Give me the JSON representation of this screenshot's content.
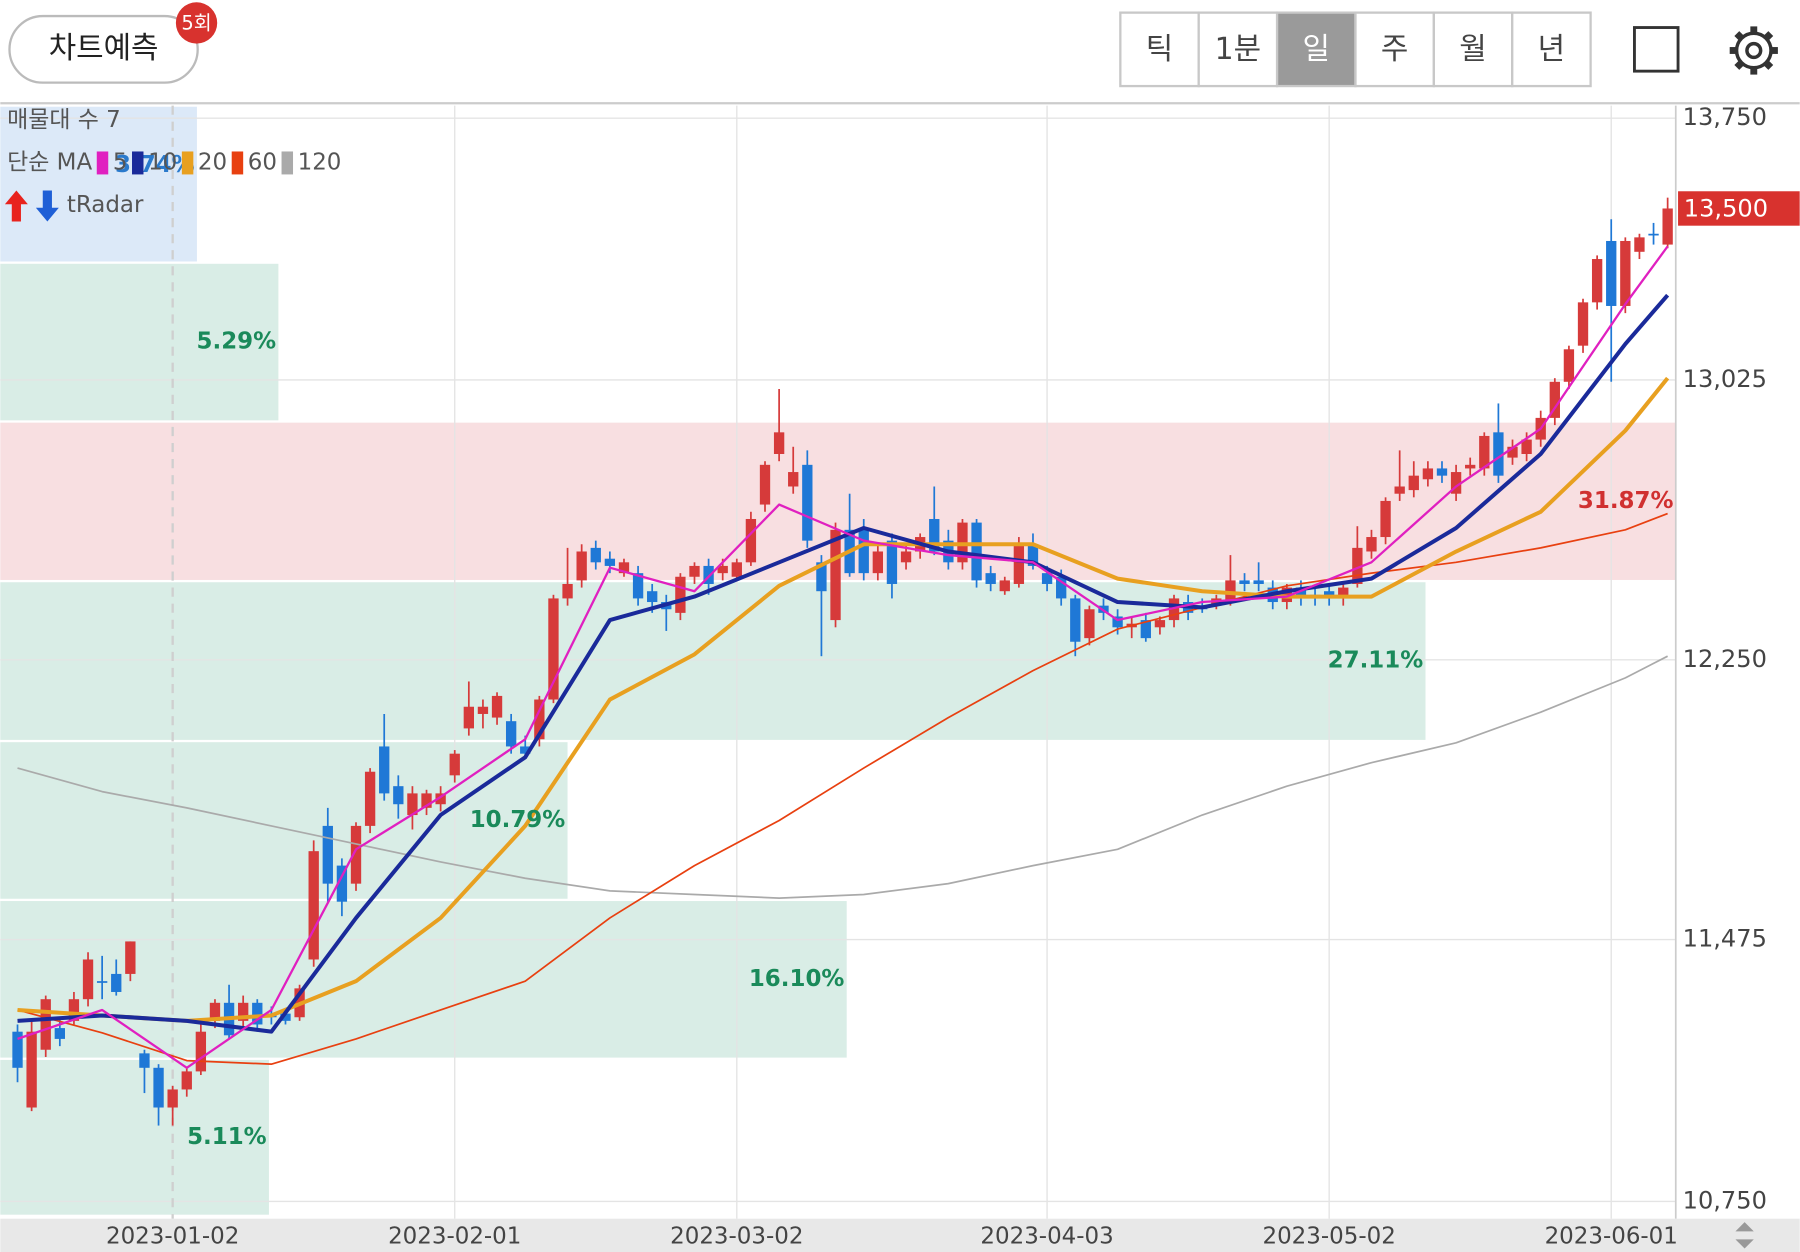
{
  "header": {
    "predict_button": "차트예측",
    "badge": "5회",
    "tabs": [
      "틱",
      "1분",
      "일",
      "주",
      "월",
      "년"
    ],
    "selected_tab": 2
  },
  "chart_data": {
    "type": "candlestick",
    "legend": {
      "volume_profile": "매물대 수 7",
      "ma_label": "단순 MA",
      "radar": "tRadar"
    },
    "up_color": "#d63a3a",
    "down_color": "#1f78d6",
    "ylim": [
      10702,
      13785
    ],
    "yticks": [
      {
        "value": 13750,
        "label": "13,750"
      },
      {
        "value": 13025,
        "label": "13,025"
      },
      {
        "value": 12250,
        "label": "12,250"
      },
      {
        "value": 11475,
        "label": "11,475"
      },
      {
        "value": 10750,
        "label": "10,750"
      }
    ],
    "xticks": [
      {
        "index": 11,
        "label": "2023-01-02"
      },
      {
        "index": 31,
        "label": "2023-02-01"
      },
      {
        "index": 51,
        "label": "2023-03-02"
      },
      {
        "index": 73,
        "label": "2023-04-03"
      },
      {
        "index": 93,
        "label": "2023-05-02"
      },
      {
        "index": 113,
        "label": "2023-06-01"
      }
    ],
    "separator_tick": 0,
    "grid": true,
    "current_price": {
      "value": 13500,
      "label": "13,500"
    },
    "band_colors": {
      "normal": [
        "#d9ede6",
        "#1a8a5a"
      ],
      "max": [
        "#f8dfe1",
        "#d03030"
      ],
      "current": [
        "#dce9f8",
        "#2a7acc"
      ]
    },
    "bands": [
      {
        "low": 10710,
        "high": 11145,
        "percent": 5.11,
        "label": "5.11%"
      },
      {
        "low": 11145,
        "high": 11585,
        "percent": 16.1,
        "label": "16.10%"
      },
      {
        "low": 11585,
        "high": 12025,
        "percent": 10.79,
        "label": "10.79%"
      },
      {
        "low": 12025,
        "high": 12468,
        "percent": 27.11,
        "label": "27.11%"
      },
      {
        "low": 12468,
        "high": 12910,
        "percent": 31.87,
        "label": "31.87%"
      },
      {
        "low": 12910,
        "high": 13350,
        "percent": 5.29,
        "label": "5.29%"
      },
      {
        "low": 13350,
        "high": 13790,
        "percent": 3.74,
        "label": "3.74%"
      }
    ],
    "candles": [
      [
        11220,
        11240,
        11080,
        11120
      ],
      [
        11010,
        11250,
        11000,
        11220
      ],
      [
        11170,
        11320,
        11150,
        11310
      ],
      [
        11230,
        11260,
        11180,
        11200
      ],
      [
        11250,
        11330,
        11240,
        11310
      ],
      [
        11310,
        11440,
        11290,
        11420
      ],
      [
        11360,
        11430,
        11310,
        11360
      ],
      [
        11380,
        11420,
        11320,
        11330
      ],
      [
        11380,
        11470,
        11360,
        11470
      ],
      [
        11160,
        11170,
        11050,
        11120
      ],
      [
        11120,
        11130,
        10960,
        11010
      ],
      [
        11010,
        11070,
        10960,
        11060
      ],
      [
        11060,
        11120,
        11040,
        11110
      ],
      [
        11110,
        11240,
        11100,
        11220
      ],
      [
        11250,
        11310,
        11230,
        11300
      ],
      [
        11300,
        11350,
        11200,
        11210
      ],
      [
        11250,
        11320,
        11230,
        11300
      ],
      [
        11300,
        11310,
        11220,
        11240
      ],
      [
        11270,
        11290,
        11240,
        11260
      ],
      [
        11270,
        11280,
        11240,
        11250
      ],
      [
        11260,
        11350,
        11250,
        11340
      ],
      [
        11420,
        11750,
        11400,
        11720
      ],
      [
        11790,
        11840,
        11580,
        11630
      ],
      [
        11680,
        11700,
        11540,
        11580
      ],
      [
        11630,
        11800,
        11610,
        11790
      ],
      [
        11790,
        11950,
        11770,
        11940
      ],
      [
        12010,
        12100,
        11860,
        11880
      ],
      [
        11900,
        11930,
        11810,
        11850
      ],
      [
        11820,
        11900,
        11780,
        11880
      ],
      [
        11840,
        11890,
        11820,
        11880
      ],
      [
        11850,
        11900,
        11830,
        11880
      ],
      [
        11930,
        12000,
        11910,
        11990
      ],
      [
        12060,
        12190,
        12040,
        12120
      ],
      [
        12100,
        12140,
        12060,
        12120
      ],
      [
        12090,
        12160,
        12070,
        12150
      ],
      [
        12080,
        12100,
        11990,
        12010
      ],
      [
        12010,
        12040,
        11980,
        11990
      ],
      [
        12030,
        12150,
        12010,
        12140
      ],
      [
        12140,
        12430,
        12130,
        12420
      ],
      [
        12420,
        12560,
        12400,
        12460
      ],
      [
        12470,
        12570,
        12450,
        12550
      ],
      [
        12560,
        12580,
        12500,
        12520
      ],
      [
        12530,
        12550,
        12490,
        12510
      ],
      [
        12490,
        12530,
        12480,
        12520
      ],
      [
        12490,
        12510,
        12400,
        12420
      ],
      [
        12440,
        12460,
        12380,
        12410
      ],
      [
        12410,
        12430,
        12330,
        12390
      ],
      [
        12380,
        12490,
        12360,
        12480
      ],
      [
        12480,
        12520,
        12460,
        12510
      ],
      [
        12510,
        12530,
        12430,
        12460
      ],
      [
        12490,
        12530,
        12470,
        12510
      ],
      [
        12480,
        12530,
        12470,
        12520
      ],
      [
        12520,
        12660,
        12510,
        12640
      ],
      [
        12680,
        12800,
        12660,
        12790
      ],
      [
        12820,
        13000,
        12800,
        12880
      ],
      [
        12730,
        12840,
        12710,
        12770
      ],
      [
        12790,
        12830,
        12560,
        12580
      ],
      [
        12520,
        12540,
        12260,
        12440
      ],
      [
        12360,
        12630,
        12340,
        12610
      ],
      [
        12610,
        12710,
        12480,
        12490
      ],
      [
        12610,
        12640,
        12470,
        12490
      ],
      [
        12490,
        12570,
        12470,
        12550
      ],
      [
        12580,
        12600,
        12420,
        12460
      ],
      [
        12520,
        12570,
        12500,
        12550
      ],
      [
        12550,
        12600,
        12530,
        12590
      ],
      [
        12640,
        12730,
        12540,
        12550
      ],
      [
        12580,
        12610,
        12500,
        12520
      ],
      [
        12520,
        12640,
        12500,
        12630
      ],
      [
        12630,
        12640,
        12450,
        12470
      ],
      [
        12490,
        12510,
        12440,
        12460
      ],
      [
        12440,
        12480,
        12430,
        12470
      ],
      [
        12460,
        12590,
        12450,
        12570
      ],
      [
        12570,
        12600,
        12500,
        12510
      ],
      [
        12490,
        12510,
        12440,
        12460
      ],
      [
        12480,
        12500,
        12400,
        12420
      ],
      [
        12420,
        12430,
        12260,
        12300
      ],
      [
        12310,
        12400,
        12290,
        12390
      ],
      [
        12400,
        12420,
        12360,
        12380
      ],
      [
        12370,
        12390,
        12320,
        12340
      ],
      [
        12340,
        12370,
        12310,
        12350
      ],
      [
        12360,
        12380,
        12300,
        12310
      ],
      [
        12340,
        12370,
        12320,
        12360
      ],
      [
        12360,
        12430,
        12340,
        12420
      ],
      [
        12410,
        12430,
        12360,
        12380
      ],
      [
        12400,
        12420,
        12380,
        12390
      ],
      [
        12400,
        12430,
        12390,
        12420
      ],
      [
        12410,
        12540,
        12400,
        12470
      ],
      [
        12470,
        12490,
        12440,
        12460
      ],
      [
        12470,
        12520,
        12440,
        12460
      ],
      [
        12450,
        12470,
        12390,
        12410
      ],
      [
        12410,
        12460,
        12390,
        12450
      ],
      [
        12450,
        12470,
        12400,
        12420
      ],
      [
        12430,
        12450,
        12400,
        12420
      ],
      [
        12440,
        12460,
        12400,
        12420
      ],
      [
        12420,
        12460,
        12400,
        12450
      ],
      [
        12460,
        12620,
        12450,
        12560
      ],
      [
        12550,
        12610,
        12530,
        12590
      ],
      [
        12590,
        12700,
        12570,
        12690
      ],
      [
        12710,
        12830,
        12690,
        12730
      ],
      [
        12720,
        12800,
        12700,
        12760
      ],
      [
        12750,
        12800,
        12730,
        12780
      ],
      [
        12780,
        12800,
        12740,
        12760
      ],
      [
        12710,
        12790,
        12690,
        12770
      ],
      [
        12780,
        12810,
        12760,
        12790
      ],
      [
        12780,
        12880,
        12760,
        12870
      ],
      [
        12880,
        12960,
        12740,
        12760
      ],
      [
        12810,
        12860,
        12790,
        12840
      ],
      [
        12820,
        12880,
        12800,
        12860
      ],
      [
        12860,
        12940,
        12840,
        12920
      ],
      [
        12920,
        13030,
        12900,
        13020
      ],
      [
        13020,
        13120,
        13000,
        13110
      ],
      [
        13120,
        13250,
        13100,
        13240
      ],
      [
        13240,
        13370,
        13220,
        13360
      ],
      [
        13410,
        13470,
        13020,
        13230
      ],
      [
        13230,
        13420,
        13210,
        13410
      ],
      [
        13380,
        13430,
        13360,
        13420
      ],
      [
        13430,
        13460,
        13400,
        13430
      ],
      [
        13400,
        13530,
        13390,
        13500
      ]
    ],
    "ma_x": [
      0,
      6,
      12,
      18,
      24,
      30,
      36,
      42,
      48,
      54,
      60,
      66,
      72,
      78,
      84,
      90,
      96,
      102,
      108,
      114,
      117
    ],
    "ma": [
      {
        "name": "5",
        "color": "#e020c0",
        "width": 2,
        "values": [
          11200,
          11280,
          11120,
          11280,
          11725,
          11870,
          12030,
          12505,
          12440,
          12680,
          12580,
          12540,
          12520,
          12360,
          12410,
          12425,
          12520,
          12730,
          12890,
          13235,
          13395
        ]
      },
      {
        "name": "10",
        "color": "#1a2a9a",
        "width": 3.5,
        "values": [
          11250,
          11265,
          11250,
          11220,
          11535,
          11820,
          11980,
          12360,
          12425,
          12520,
          12615,
          12550,
          12520,
          12410,
          12395,
          12440,
          12475,
          12615,
          12820,
          13125,
          13260
        ]
      },
      {
        "name": "20",
        "color": "#e8a020",
        "width": 3.5,
        "values": [
          11280,
          11265,
          11250,
          11265,
          11360,
          11535,
          11790,
          12140,
          12265,
          12455,
          12570,
          12570,
          12570,
          12475,
          12440,
          12425,
          12425,
          12550,
          12660,
          12885,
          13030
        ]
      },
      {
        "name": "60",
        "color": "#e84010",
        "width": 1.5,
        "values": [
          11280,
          11217,
          11140,
          11130,
          11200,
          11280,
          11360,
          11535,
          11680,
          11805,
          11950,
          12090,
          12220,
          12335,
          12395,
          12455,
          12490,
          12520,
          12560,
          12610,
          12655
        ]
      },
      {
        "name": "120",
        "color": "#aaaaaa",
        "width": 1.5,
        "values": [
          11950,
          11885,
          11840,
          11790,
          11740,
          11690,
          11645,
          11610,
          11600,
          11590,
          11600,
          11630,
          11680,
          11725,
          11820,
          11900,
          11965,
          12020,
          12105,
          12200,
          12260
        ]
      }
    ]
  }
}
